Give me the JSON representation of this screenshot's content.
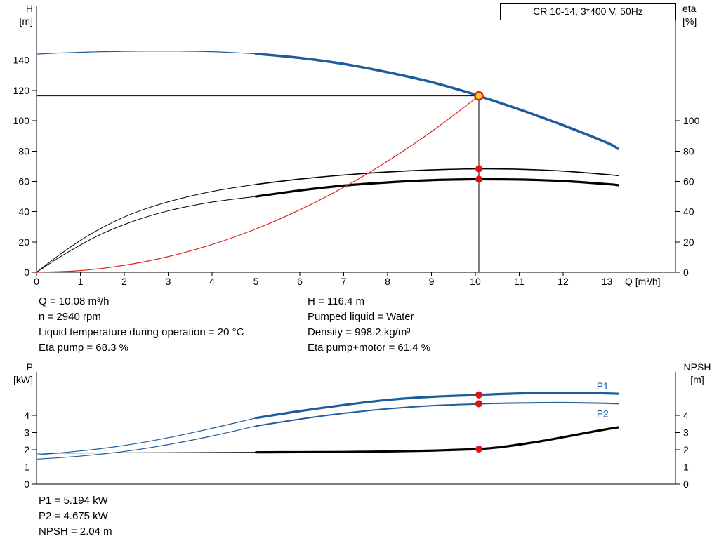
{
  "info_top_left": {
    "flow": "Q = 10.08 m³/h",
    "speed": "n = 2940 rpm",
    "temperature": "Liquid temperature during operation = 20 °C",
    "eta_pump": "Eta pump = 68.3 %"
  },
  "info_top_right": {
    "head": "H = 116.4 m",
    "liquid": "Pumped liquid = Water",
    "density": "Density = 998.2 kg/m³",
    "eta_total": "Eta pump+motor = 61.4 %"
  },
  "info_bottom": {
    "p1": "P1 = 5.194 kW",
    "p2": "P2 = 4.675 kW",
    "npsh": "NPSH = 2.04 m"
  },
  "colors": {
    "curve_blue": "#1e5c9e",
    "marker_red": "#e02020",
    "duty_yellow": "#ffd800",
    "curve_black": "#000000"
  },
  "chart_data": [
    {
      "type": "line",
      "title": "CR 10-14, 3*400 V, 50Hz",
      "x_axis": {
        "label": "Q [m³/h]",
        "range": [
          0,
          14.56
        ],
        "ticks": [
          0,
          1,
          2,
          3,
          4,
          5,
          6,
          7,
          8,
          9,
          10,
          11,
          12,
          13
        ],
        "show_tick_labels": true
      },
      "y_left": {
        "label": "H",
        "unit": "[m]",
        "range": [
          0,
          176
        ],
        "ticks": [
          0,
          20,
          40,
          60,
          80,
          100,
          120,
          140
        ]
      },
      "y_right": {
        "label": "eta",
        "unit": "[%]",
        "range": [
          0,
          176
        ],
        "ticks": [
          0,
          20,
          40,
          60,
          80,
          100
        ]
      },
      "duty_lines": {
        "q": 10.08,
        "h": 116.4
      },
      "series": [
        {
          "name": "head-curve-thin",
          "color": "#1e5c9e",
          "width": 1.2,
          "x": [
            0,
            0.5,
            1,
            1.5,
            2,
            2.5,
            3,
            3.5,
            4,
            4.5,
            5
          ],
          "y": [
            144,
            144.7,
            145.2,
            145.6,
            145.8,
            146,
            146,
            145.9,
            145.6,
            145,
            144.2
          ]
        },
        {
          "name": "head-curve",
          "color": "#1e5c9e",
          "width": 3.5,
          "x": [
            5,
            6,
            7,
            8,
            9,
            10,
            10.08,
            11,
            12,
            13,
            13.25
          ],
          "y": [
            144.2,
            141.5,
            137.5,
            132,
            125.5,
            117.3,
            116.4,
            107.5,
            97,
            85.5,
            81.5
          ]
        },
        {
          "name": "eta-pump-curve-thin",
          "color": "#000000",
          "width": 1,
          "x": [
            0,
            0.5,
            1,
            1.5,
            2,
            2.5,
            3,
            3.5,
            4,
            4.5,
            5
          ],
          "y": [
            0,
            11,
            21,
            29.5,
            36.5,
            42,
            46.5,
            50.2,
            53.3,
            55.8,
            58
          ]
        },
        {
          "name": "eta-pump-curve",
          "color": "#000000",
          "width": 1.6,
          "x": [
            5,
            6,
            7,
            8,
            9,
            10,
            10.08,
            11,
            12,
            13,
            13.25
          ],
          "y": [
            58,
            61.5,
            64.2,
            66.2,
            67.6,
            68.3,
            68.3,
            68,
            66.8,
            64.5,
            63.8
          ]
        },
        {
          "name": "eta-pump-motor-curve-thin",
          "color": "#000000",
          "width": 1,
          "x": [
            0,
            0.5,
            1,
            1.5,
            2,
            2.5,
            3,
            3.5,
            4,
            4.5,
            5
          ],
          "y": [
            0,
            9.5,
            18,
            25.5,
            31.5,
            36.5,
            40.5,
            43.7,
            46.3,
            48.3,
            50
          ]
        },
        {
          "name": "eta-pump-motor-curve",
          "color": "#000000",
          "width": 3.2,
          "x": [
            5,
            6,
            7,
            8,
            9,
            10,
            10.08,
            11,
            12,
            13,
            13.25
          ],
          "y": [
            50,
            54,
            57.2,
            59.3,
            60.8,
            61.4,
            61.4,
            61.2,
            60.2,
            58.2,
            57.5
          ]
        },
        {
          "name": "system-curve",
          "color": "#e02020",
          "width": 1.2,
          "x": [
            0,
            1,
            2,
            3,
            4,
            5,
            6,
            7,
            8,
            9,
            10,
            10.08
          ],
          "y": [
            0,
            1.1,
            4.6,
            10.3,
            18.3,
            28.6,
            41.2,
            56.1,
            73.3,
            92.8,
            114.6,
            116.4
          ]
        }
      ],
      "markers": [
        {
          "name": "duty-point",
          "x": 10.08,
          "y": 116.4,
          "r": 5.5,
          "fill": "#ffd800",
          "stroke": "#e02020",
          "stroke_width": 2.5
        },
        {
          "name": "eta-pump-duty-dot",
          "x": 10.08,
          "y": 68.3,
          "r": 5,
          "fill": "#e81010"
        },
        {
          "name": "eta-pump-motor-duty-dot",
          "x": 10.08,
          "y": 61.4,
          "r": 5,
          "fill": "#e81010"
        }
      ],
      "annotations": []
    },
    {
      "type": "line",
      "title": "",
      "x_axis": {
        "label": "",
        "range": [
          0,
          14.56
        ],
        "ticks": [],
        "show_tick_labels": false
      },
      "y_left": {
        "label": "P",
        "unit": "[kW]",
        "range": [
          0,
          6.53
        ],
        "ticks": [
          0,
          1,
          2,
          3,
          4
        ]
      },
      "y_right": {
        "label": "NPSH",
        "unit": "[m]",
        "range": [
          0,
          6.53
        ],
        "ticks": [
          0,
          1,
          2,
          3,
          4
        ]
      },
      "series": [
        {
          "name": "p1-curve-thin",
          "color": "#1e5c9e",
          "width": 1.2,
          "x": [
            0,
            1,
            2,
            3,
            4,
            5
          ],
          "y": [
            1.7,
            1.93,
            2.25,
            2.7,
            3.25,
            3.85
          ]
        },
        {
          "name": "p1-curve",
          "color": "#1e5c9e",
          "width": 3.2,
          "x": [
            5,
            6,
            7,
            8,
            9,
            10,
            10.08,
            11,
            12,
            13,
            13.25
          ],
          "y": [
            3.85,
            4.25,
            4.6,
            4.9,
            5.08,
            5.18,
            5.194,
            5.28,
            5.32,
            5.28,
            5.26
          ]
        },
        {
          "name": "p2-curve-thin",
          "color": "#1e5c9e",
          "width": 1.2,
          "x": [
            0,
            1,
            2,
            3,
            4,
            5
          ],
          "y": [
            1.45,
            1.63,
            1.9,
            2.3,
            2.8,
            3.38
          ]
        },
        {
          "name": "p2-curve",
          "color": "#1e5c9e",
          "width": 2,
          "x": [
            5,
            6,
            7,
            8,
            9,
            10,
            10.08,
            11,
            12,
            13,
            13.25
          ],
          "y": [
            3.38,
            3.78,
            4.12,
            4.38,
            4.56,
            4.66,
            4.675,
            4.72,
            4.74,
            4.7,
            4.68
          ]
        },
        {
          "name": "npsh-curve-thin",
          "color": "#000000",
          "width": 1,
          "x": [
            0,
            2,
            4,
            5
          ],
          "y": [
            1.8,
            1.82,
            1.84,
            1.85
          ]
        },
        {
          "name": "npsh-curve",
          "color": "#000000",
          "width": 3.2,
          "x": [
            5,
            6,
            7,
            8,
            9,
            9.5,
            10,
            10.08,
            10.5,
            11,
            11.5,
            12,
            12.5,
            13,
            13.25
          ],
          "y": [
            1.85,
            1.86,
            1.87,
            1.9,
            1.95,
            1.99,
            2.03,
            2.04,
            2.13,
            2.3,
            2.5,
            2.73,
            2.97,
            3.2,
            3.3
          ]
        }
      ],
      "markers": [
        {
          "name": "p1-duty-dot",
          "x": 10.08,
          "y": 5.194,
          "r": 5,
          "fill": "#e81010"
        },
        {
          "name": "p2-duty-dot",
          "x": 10.08,
          "y": 4.675,
          "r": 5,
          "fill": "#e81010"
        },
        {
          "name": "npsh-duty-dot",
          "x": 10.08,
          "y": 2.04,
          "r": 5,
          "fill": "#e81010"
        }
      ],
      "annotations": [
        {
          "text": "P1",
          "x": 12.9,
          "y": 5.5,
          "color": "#1e5c9e"
        },
        {
          "text": "P2",
          "x": 12.9,
          "y": 3.9,
          "color": "#1e5c9e"
        }
      ]
    }
  ]
}
